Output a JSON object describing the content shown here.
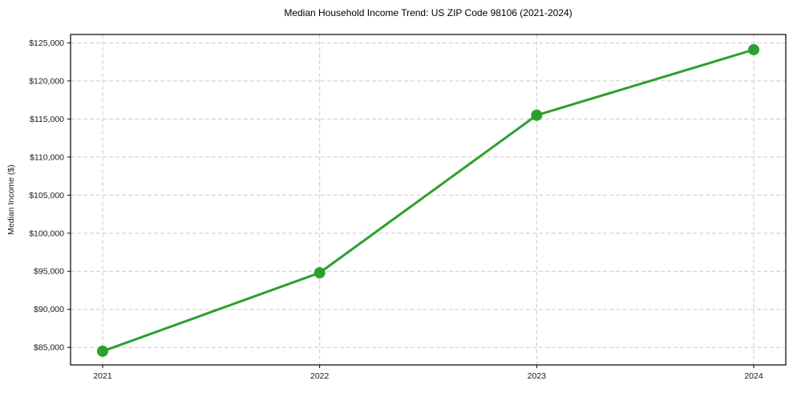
{
  "figure": {
    "background": "#ffffff"
  },
  "chart_data": {
    "type": "line",
    "title": "Median Household Income Trend: US ZIP Code 98106 (2021-2024)",
    "xlabel": "",
    "ylabel": "Median Income ($)",
    "categories": [
      "2021",
      "2022",
      "2023",
      "2024"
    ],
    "series": [
      {
        "values": [
          84500,
          94800,
          115500,
          124100
        ],
        "color": "#2ca02c",
        "marker": "circle"
      }
    ],
    "ylim": [
      82700,
      126100
    ],
    "yticks": [
      85000,
      90000,
      95000,
      100000,
      105000,
      110000,
      115000,
      120000,
      125000
    ],
    "ytick_labels": [
      "$85,000",
      "$90,000",
      "$95,000",
      "$100,000",
      "$105,000",
      "$110,000",
      "$115,000",
      "$120,000",
      "$125,000"
    ],
    "grid": {
      "show": true,
      "style": "dashed",
      "color": "#cccccc"
    },
    "legend": {
      "show": false
    },
    "axis_color": "#000000",
    "tick_label_color": "#1a1a1a"
  }
}
